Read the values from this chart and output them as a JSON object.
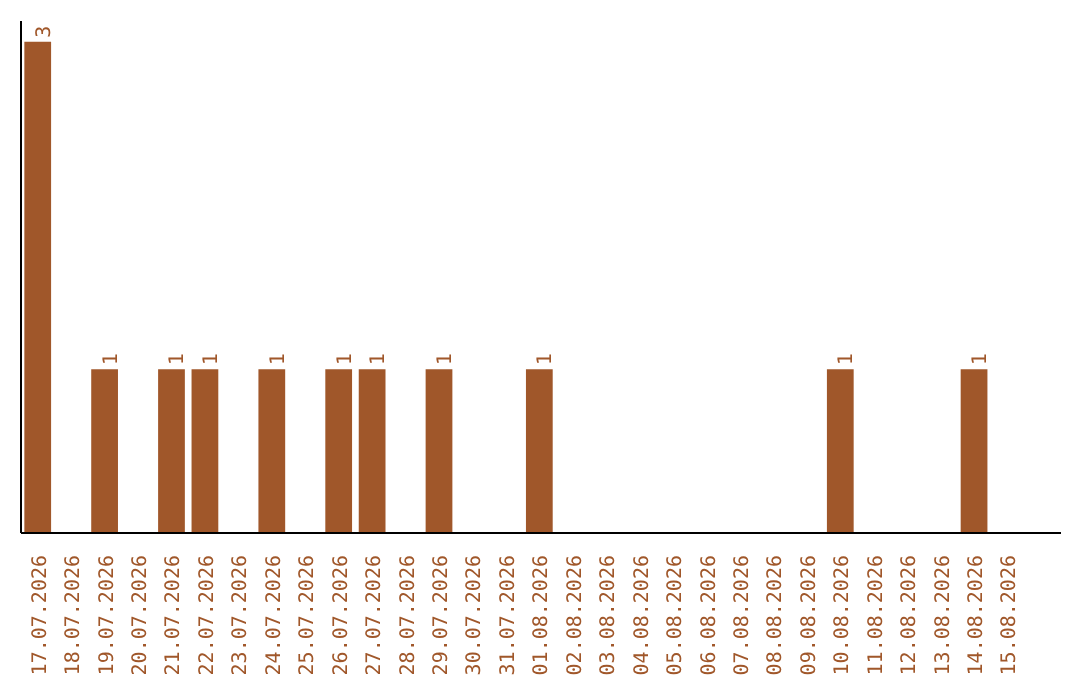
{
  "chart_data": {
    "type": "bar",
    "categories": [
      "17.07.2026",
      "18.07.2026",
      "19.07.2026",
      "20.07.2026",
      "21.07.2026",
      "22.07.2026",
      "23.07.2026",
      "24.07.2026",
      "25.07.2026",
      "26.07.2026",
      "27.07.2026",
      "28.07.2026",
      "29.07.2026",
      "30.07.2026",
      "31.07.2026",
      "01.08.2026",
      "02.08.2026",
      "03.08.2026",
      "04.08.2026",
      "05.08.2026",
      "06.08.2026",
      "07.08.2026",
      "08.08.2026",
      "09.08.2026",
      "10.08.2026",
      "11.08.2026",
      "12.08.2026",
      "13.08.2026",
      "14.08.2026",
      "15.08.2026"
    ],
    "values": [
      3,
      0,
      1,
      0,
      1,
      1,
      0,
      1,
      0,
      1,
      1,
      0,
      1,
      0,
      0,
      1,
      0,
      0,
      0,
      0,
      0,
      0,
      0,
      0,
      1,
      0,
      0,
      0,
      1,
      0
    ],
    "value_labels": [
      "3",
      null,
      "1",
      null,
      "1",
      "1",
      null,
      "1",
      null,
      "1",
      "1",
      null,
      "1",
      null,
      null,
      "1",
      null,
      null,
      null,
      null,
      null,
      null,
      null,
      null,
      "1",
      null,
      null,
      null,
      "1",
      null
    ],
    "color": "#a0572a",
    "grid": false,
    "tick_labels": "x"
  }
}
